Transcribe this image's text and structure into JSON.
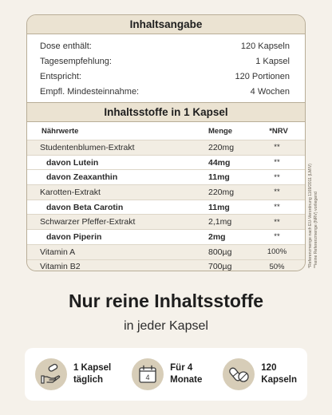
{
  "info": {
    "title": "Inhaltsangabe",
    "rows": [
      {
        "label": "Dose enthält:",
        "value": "120 Kapseln"
      },
      {
        "label": "Tagesempfehlung:",
        "value": "1 Kapsel"
      },
      {
        "label": "Entspricht:",
        "value": "120 Portionen"
      },
      {
        "label": "Empfl. Mindesteinnahme:",
        "value": "4 Wochen"
      }
    ]
  },
  "ingredients": {
    "title": "Inhaltsstoffe in 1 Kapsel",
    "headers": {
      "name": "Nährwerte",
      "amount": "Menge",
      "nrv": "*NRV"
    },
    "rows": [
      {
        "name": "Studentenblumen-Extrakt",
        "amount": "220mg",
        "nrv": "**"
      },
      {
        "name": "davon Lutein",
        "amount": "44mg",
        "nrv": "**"
      },
      {
        "name": "davon Zeaxanthin",
        "amount": "11mg",
        "nrv": "**"
      },
      {
        "name": "Karotten-Extrakt",
        "amount": "220mg",
        "nrv": "**"
      },
      {
        "name": "davon Beta Carotin",
        "amount": "11mg",
        "nrv": "**"
      },
      {
        "name": "Schwarzer Pfeffer-Extrakt",
        "amount": "2,1mg",
        "nrv": "**"
      },
      {
        "name": "davon Piperin",
        "amount": "2mg",
        "nrv": "**"
      },
      {
        "name": "Vitamin A",
        "amount": "800µg",
        "nrv": "100%"
      },
      {
        "name": "Vitamin B2",
        "amount": "700µg",
        "nrv": "50%"
      }
    ]
  },
  "footnotes": {
    "line1": "*Referenzmenge nach EU-Verordnung 1169/2011 (LMIV)",
    "line2": "**keine Referenzmenge (NRV) vorliegend"
  },
  "headline": "Nur reine Inhaltsstoffe",
  "subline": "in jeder Kapsel",
  "features": [
    {
      "icon": "hand-capsule-icon",
      "line1": "1 Kapsel",
      "line2": "täglich"
    },
    {
      "icon": "calendar-icon",
      "line1": "Für 4",
      "line2": "Monate",
      "calendar_number": "4"
    },
    {
      "icon": "capsules-icon",
      "line1": "120",
      "line2": "Kapseln"
    }
  ]
}
